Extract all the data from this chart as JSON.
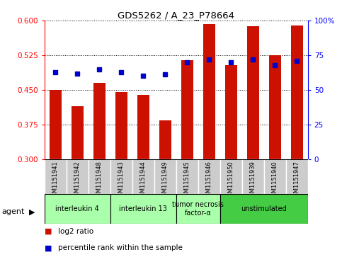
{
  "title": "GDS5262 / A_23_P78664",
  "samples": [
    "GSM1151941",
    "GSM1151942",
    "GSM1151948",
    "GSM1151943",
    "GSM1151944",
    "GSM1151949",
    "GSM1151945",
    "GSM1151946",
    "GSM1151950",
    "GSM1151939",
    "GSM1151940",
    "GSM1151947"
  ],
  "log2_ratio": [
    0.45,
    0.415,
    0.465,
    0.445,
    0.44,
    0.385,
    0.515,
    0.593,
    0.503,
    0.588,
    0.525,
    0.59
  ],
  "percentile": [
    63,
    62,
    65,
    63,
    60,
    61,
    70,
    72,
    70,
    72,
    68,
    71
  ],
  "agents": [
    {
      "label": "interleukin 4",
      "start": 0,
      "end": 3,
      "color": "#aaffaa"
    },
    {
      "label": "interleukin 13",
      "start": 3,
      "end": 6,
      "color": "#aaffaa"
    },
    {
      "label": "tumor necrosis\nfactor-α",
      "start": 6,
      "end": 8,
      "color": "#aaffaa"
    },
    {
      "label": "unstimulated",
      "start": 8,
      "end": 12,
      "color": "#44cc44"
    }
  ],
  "ylim_left": [
    0.3,
    0.6
  ],
  "ylim_right": [
    0,
    100
  ],
  "yticks_left": [
    0.3,
    0.375,
    0.45,
    0.525,
    0.6
  ],
  "yticks_right": [
    0,
    25,
    50,
    75,
    100
  ],
  "bar_color": "#cc1100",
  "dot_color": "#0000cc",
  "bar_width": 0.55,
  "sample_bg_color": "#cccccc",
  "legend_items": [
    "log2 ratio",
    "percentile rank within the sample"
  ]
}
